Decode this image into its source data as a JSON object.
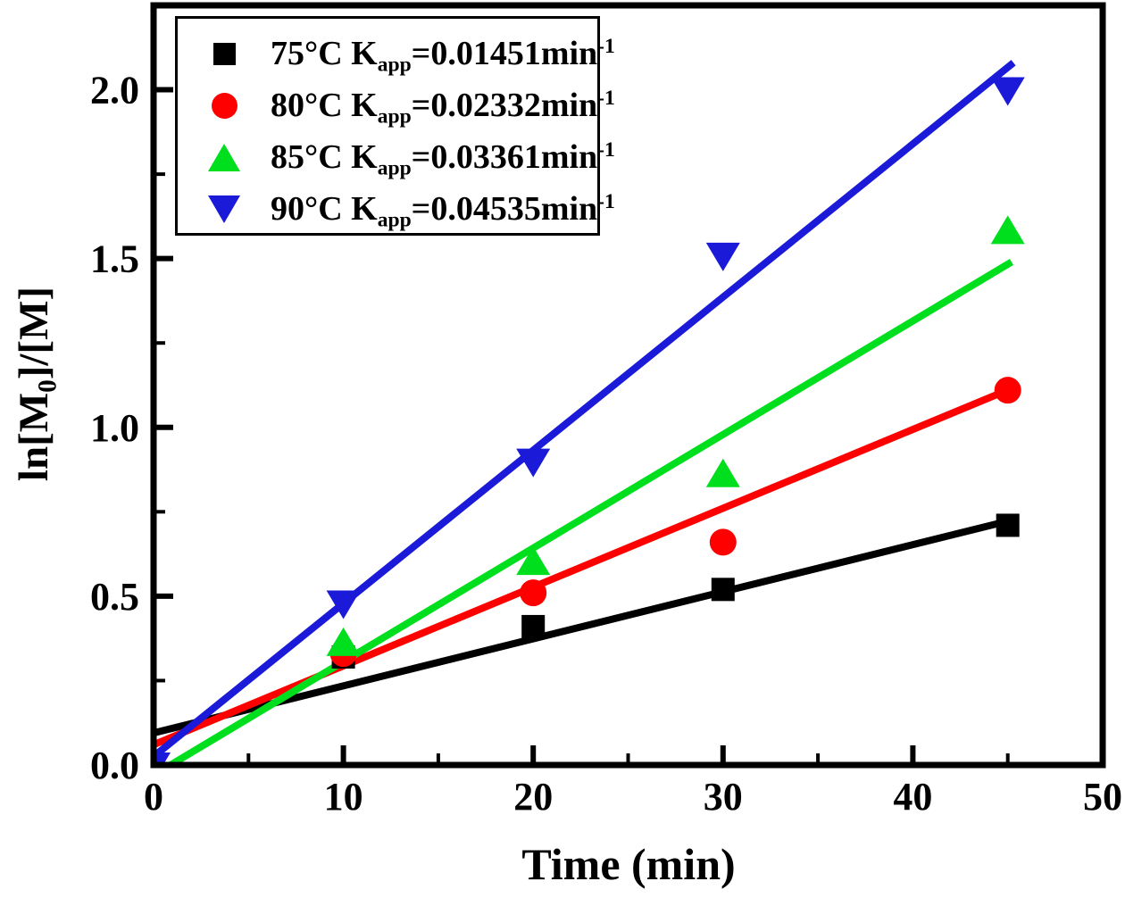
{
  "chart_data": {
    "type": "scatter",
    "title": "",
    "xlabel": "Time (min)",
    "ylabel_parts": {
      "pre": "ln[M",
      "sub": "0",
      "post": "]/[M]"
    },
    "xlim": [
      0,
      50
    ],
    "ylim": [
      0,
      2.25
    ],
    "grid": false,
    "legend_position": "top-left",
    "x_major_ticks": [
      0,
      10,
      20,
      30,
      40,
      50
    ],
    "x_major_tick_labels": [
      "0",
      "10",
      "20",
      "30",
      "40",
      "50"
    ],
    "x_minor_ticks": [
      5,
      15,
      25,
      35,
      45
    ],
    "y_major_ticks": [
      0,
      0.5,
      1.0,
      1.5,
      2.0
    ],
    "y_major_tick_labels": [
      "0.0",
      "0.5",
      "1.0",
      "1.5",
      "2.0"
    ],
    "y_minor_ticks": [
      0.25,
      0.75,
      1.25,
      1.75
    ],
    "series": [
      {
        "name": "75C",
        "legend": {
          "pre": "75°C K",
          "sub": "app",
          "mid": "=0.01451min",
          "sup": "-1"
        },
        "k_app_per_min": 0.01451,
        "color": "#000000",
        "marker": "square",
        "points": [
          [
            10,
            0.32
          ],
          [
            20,
            0.41
          ],
          [
            30,
            0.52
          ],
          [
            45,
            0.71
          ]
        ],
        "fit_line": [
          [
            0,
            0.095
          ],
          [
            45.2,
            0.725
          ]
        ]
      },
      {
        "name": "80C",
        "legend": {
          "pre": "80°C K",
          "sub": "app",
          "mid": "=0.02332min",
          "sup": "-1"
        },
        "k_app_per_min": 0.02332,
        "color": "#fe0000",
        "marker": "circle",
        "points": [
          [
            10,
            0.33
          ],
          [
            20,
            0.51
          ],
          [
            30,
            0.66
          ],
          [
            45,
            1.11
          ]
        ],
        "fit_line": [
          [
            0,
            0.06
          ],
          [
            45.4,
            1.12
          ]
        ]
      },
      {
        "name": "85C",
        "legend": {
          "pre": "85°C K",
          "sub": "app",
          "mid": "=0.03361min",
          "sup": "-1"
        },
        "k_app_per_min": 0.03361,
        "color": "#00df1e",
        "marker": "triangle-up",
        "points": [
          [
            10,
            0.36
          ],
          [
            20,
            0.6
          ],
          [
            30,
            0.86
          ],
          [
            45,
            1.58
          ]
        ],
        "fit_line": [
          [
            0,
            -0.03
          ],
          [
            45.2,
            1.49
          ]
        ]
      },
      {
        "name": "90C",
        "legend": {
          "pre": "90°C K",
          "sub": "app",
          "mid": "=0.04535min",
          "sup": "-1"
        },
        "k_app_per_min": 0.04535,
        "color": "#1a1ad8",
        "marker": "triangle-down",
        "points": [
          [
            0,
            0.0
          ],
          [
            10,
            0.48
          ],
          [
            20,
            0.9
          ],
          [
            30,
            1.51
          ],
          [
            45,
            2.0
          ]
        ],
        "fit_line": [
          [
            0,
            0.025
          ],
          [
            45.3,
            2.08
          ]
        ]
      }
    ]
  }
}
